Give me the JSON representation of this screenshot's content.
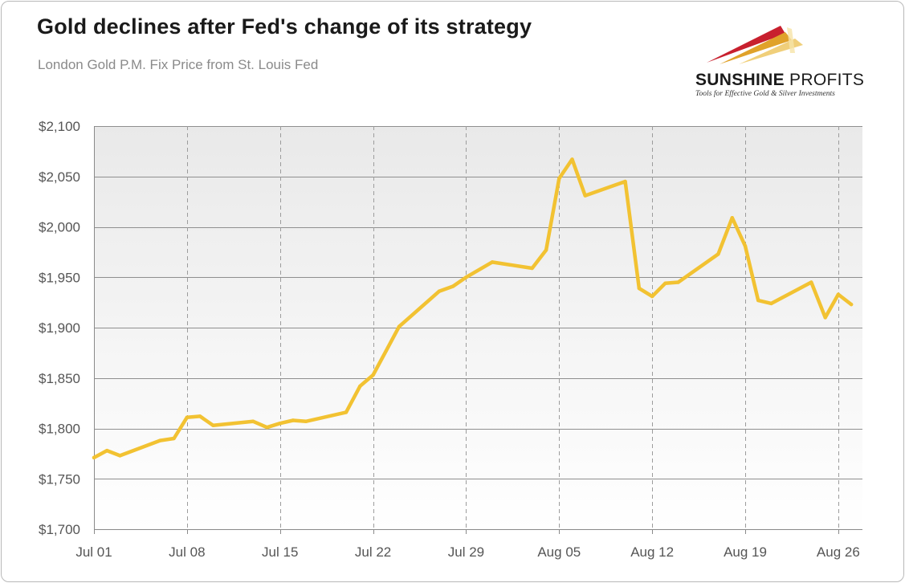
{
  "header": {
    "title": "Gold declines after Fed's change of its strategy",
    "subtitle": "London Gold P.M. Fix Price from St. Louis Fed"
  },
  "logo": {
    "brand_bold": "SUNSHINE",
    "brand_rest": " PROFITS",
    "tagline": "Tools for Effective Gold & Silver Investments",
    "colors": [
      "#c8202e",
      "#e0a22a",
      "#f0cf7a"
    ]
  },
  "chart_data": {
    "type": "line",
    "title": "Gold declines after Fed's change of its strategy",
    "subtitle": "London Gold P.M. Fix Price from St. Louis Fed",
    "xlabel": "",
    "ylabel": "",
    "ylim": [
      1700,
      2100
    ],
    "xlim": [
      0,
      8.26
    ],
    "y_ticks": [
      1700,
      1750,
      1800,
      1850,
      1900,
      1950,
      2000,
      2050,
      2100
    ],
    "y_tick_labels": [
      "$1,700",
      "$1,750",
      "$1,800",
      "$1,850",
      "$1,900",
      "$1,950",
      "$2,000",
      "$2,050",
      "$2,100"
    ],
    "x_tick_positions": [
      0,
      1,
      2,
      3,
      4,
      5,
      6,
      7,
      8
    ],
    "x_tick_labels": [
      "Jul 01",
      "Jul 08",
      "Jul 15",
      "Jul 22",
      "Jul 29",
      "Aug 05",
      "Aug 12",
      "Aug 19",
      "Aug 26"
    ],
    "grid": true,
    "line_color": "#f2c232",
    "series": [
      {
        "name": "London Gold P.M. Fix Price",
        "x": [
          0.0,
          0.14,
          0.28,
          0.71,
          0.86,
          1.0,
          1.14,
          1.28,
          1.71,
          1.86,
          2.0,
          2.14,
          2.28,
          2.71,
          2.86,
          3.0,
          3.14,
          3.28,
          3.71,
          3.86,
          4.0,
          4.28,
          4.71,
          4.86,
          5.0,
          5.14,
          5.28,
          5.71,
          5.86,
          6.0,
          6.14,
          6.28,
          6.71,
          6.86,
          7.0,
          7.14,
          7.28,
          7.71,
          7.86,
          8.0,
          8.14
        ],
        "values": [
          1771,
          1778,
          1773,
          1788,
          1790,
          1811,
          1812,
          1803,
          1807,
          1801,
          1805,
          1808,
          1807,
          1816,
          1842,
          1853,
          1877,
          1901,
          1936,
          1941,
          1950,
          1965,
          1959,
          1977,
          2048,
          2067,
          2031,
          2045,
          1939,
          1931,
          1944,
          1945,
          1973,
          2009,
          1981,
          1927,
          1924,
          1945,
          1910,
          1933,
          1923
        ]
      }
    ]
  }
}
